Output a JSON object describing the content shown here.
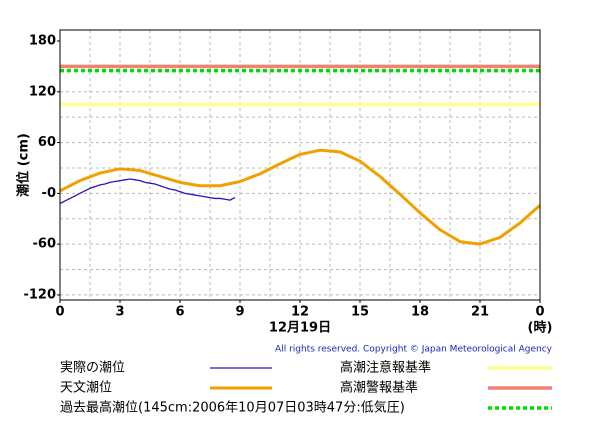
{
  "chart_data": {
    "type": "line",
    "y_label": "潮位 (cm)",
    "x_label": "12月19日",
    "x_unit": "(時)",
    "copyright": "All rights reserved. Copyright © Japan Meteorological Agency",
    "xlim": [
      0,
      24
    ],
    "xticks": [
      0,
      3,
      6,
      9,
      12,
      15,
      18,
      21,
      {
        "value": 24,
        "label": "0"
      }
    ],
    "xgrid": [
      1.5,
      3,
      4.5,
      6,
      7.5,
      9,
      10.5,
      12,
      13.5,
      15,
      16.5,
      18,
      19.5,
      21,
      22.5
    ],
    "ylim": [
      -126,
      193
    ],
    "yticks": [
      180,
      120,
      60,
      {
        "value": 0,
        "label": "-0"
      },
      -60,
      -120
    ],
    "ygrid": [
      150,
      120,
      90,
      60,
      30,
      0,
      -30,
      -60,
      -90,
      -120
    ],
    "series": [
      {
        "name": "実際の潮位",
        "color": "#3010c0",
        "width": 1.3,
        "x": [
          0,
          0.25,
          0.5,
          0.75,
          1,
          1.25,
          1.5,
          1.75,
          2,
          2.25,
          2.5,
          2.75,
          3,
          3.25,
          3.5,
          3.75,
          4,
          4.25,
          4.5,
          4.75,
          5,
          5.25,
          5.5,
          5.75,
          6,
          6.25,
          6.5,
          6.75,
          7,
          7.25,
          7.5,
          7.75,
          8,
          8.25,
          8.5,
          8.75
        ],
        "values": [
          -12,
          -9,
          -6,
          -3,
          0,
          3,
          6,
          8,
          10,
          11,
          13,
          14,
          15,
          16,
          17,
          16,
          15,
          13,
          12,
          11,
          9,
          7,
          5,
          4,
          2,
          0,
          -1,
          -2,
          -3,
          -4,
          -5,
          -6,
          -6,
          -7,
          -8,
          -5
        ]
      },
      {
        "name": "天文潮位",
        "color": "#f0a000",
        "width": 3,
        "x": [
          0,
          1,
          2,
          3,
          4,
          5,
          6,
          7,
          8,
          9,
          10,
          11,
          12,
          13,
          14,
          15,
          16,
          17,
          18,
          19,
          20,
          21,
          22,
          23,
          24
        ],
        "values": [
          3,
          15,
          24,
          29,
          27,
          20,
          13,
          9,
          9,
          14,
          23,
          35,
          46,
          51,
          49,
          38,
          20,
          -1,
          -23,
          -43,
          -57,
          -60,
          -52,
          -35,
          -14
        ]
      }
    ],
    "reference_lines": [
      {
        "name": "高潮注意報基準",
        "color": "#ffff90",
        "value": 105,
        "dashed": false
      },
      {
        "name": "高潮警報基準",
        "color": "#f08070",
        "value": 150,
        "dashed": false
      },
      {
        "name": "過去最高潮位(145cm:2006年10月07日03時47分:低気圧)",
        "color": "#00dd00",
        "value": 145,
        "dashed": true
      }
    ]
  }
}
